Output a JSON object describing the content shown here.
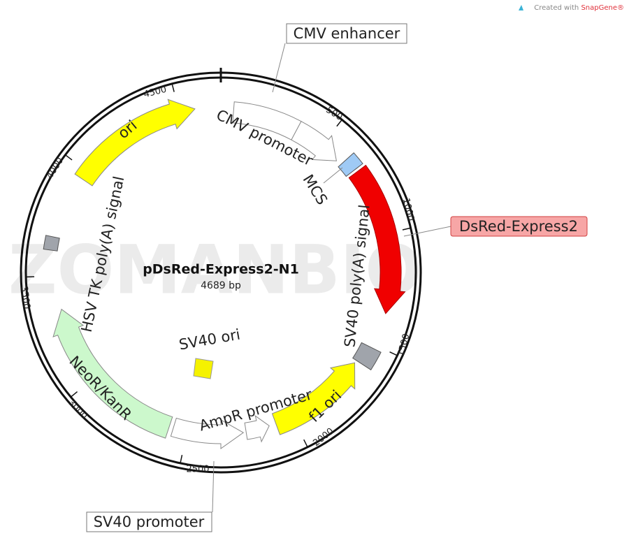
{
  "header": {
    "prefix": "Created with",
    "brand": "SnapGene®"
  },
  "watermark": "ZOMANBIO",
  "plasmid": {
    "name": "pDsRed-Express2-N1",
    "size": "4689 bp"
  },
  "ticks": [
    "500",
    "1000",
    "1500",
    "2000",
    "2500",
    "3000",
    "3500",
    "4000",
    "4500"
  ],
  "features": {
    "cmv_enhancer": "CMV enhancer",
    "cmv_promoter": "CMV promoter",
    "mcs": "MCS",
    "dsred": "DsRed-Express2",
    "sv40_polya": "SV40 poly(A) signal",
    "f1_ori": "f1 ori",
    "ampr_promoter": "AmpR promoter",
    "sv40_promoter": "SV40 promoter",
    "neor": "NeoR/KanR",
    "hsv_polya": "HSV TK poly(A) signal",
    "ori": "ori",
    "sv40_ori": "SV40 ori"
  }
}
